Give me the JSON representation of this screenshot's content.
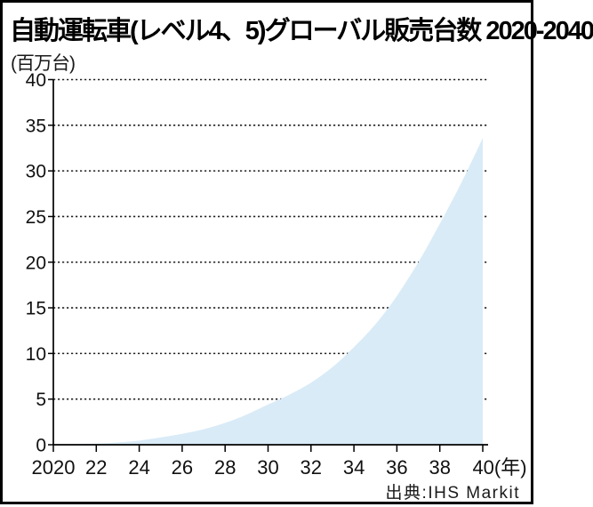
{
  "header": {
    "title": "自動運転車(レベル4、5)グローバル販売台数 2020-2040",
    "unit_label": "(百万台)"
  },
  "footer": {
    "source": "出典:IHS Markit"
  },
  "colors": {
    "area_fill": "#d9ebf7",
    "axis": "#000000",
    "gridline": "#222222",
    "text": "#111111"
  },
  "chart_data": {
    "type": "area",
    "title": "自動運転車(レベル4、5)グローバル販売台数 2020-2040",
    "ylabel": "(百万台)",
    "xlabel": "(年)",
    "source": "出典:IHS Markit",
    "xlim": [
      2020,
      2040
    ],
    "ylim": [
      0,
      40
    ],
    "grid": "dotted-horizontal",
    "legend": "none",
    "x": [
      2020,
      2021,
      2022,
      2023,
      2024,
      2025,
      2026,
      2027,
      2028,
      2029,
      2030,
      2031,
      2032,
      2033,
      2034,
      2035,
      2036,
      2037,
      2038,
      2039,
      2040
    ],
    "values": [
      0,
      0.05,
      0.12,
      0.25,
      0.45,
      0.8,
      1.2,
      1.7,
      2.4,
      3.3,
      4.4,
      5.5,
      6.8,
      8.5,
      10.7,
      13.2,
      16.3,
      20.0,
      24.2,
      28.7,
      33.6
    ],
    "yticks": [
      0,
      5,
      10,
      15,
      20,
      25,
      30,
      35,
      40
    ],
    "xticks": [
      {
        "year": 2020,
        "label": "2020",
        "dx": 0
      },
      {
        "year": 2022,
        "label": "22",
        "dx": 0
      },
      {
        "year": 2024,
        "label": "24",
        "dx": 0
      },
      {
        "year": 2026,
        "label": "26",
        "dx": 0
      },
      {
        "year": 2028,
        "label": "28",
        "dx": 0
      },
      {
        "year": 2030,
        "label": "30",
        "dx": 0
      },
      {
        "year": 2032,
        "label": "32",
        "dx": 0
      },
      {
        "year": 2034,
        "label": "34",
        "dx": 0
      },
      {
        "year": 2036,
        "label": "36",
        "dx": 0
      },
      {
        "year": 2038,
        "label": "38",
        "dx": 0
      },
      {
        "year": 2040,
        "label": "40(年)",
        "dx": 19
      }
    ]
  }
}
